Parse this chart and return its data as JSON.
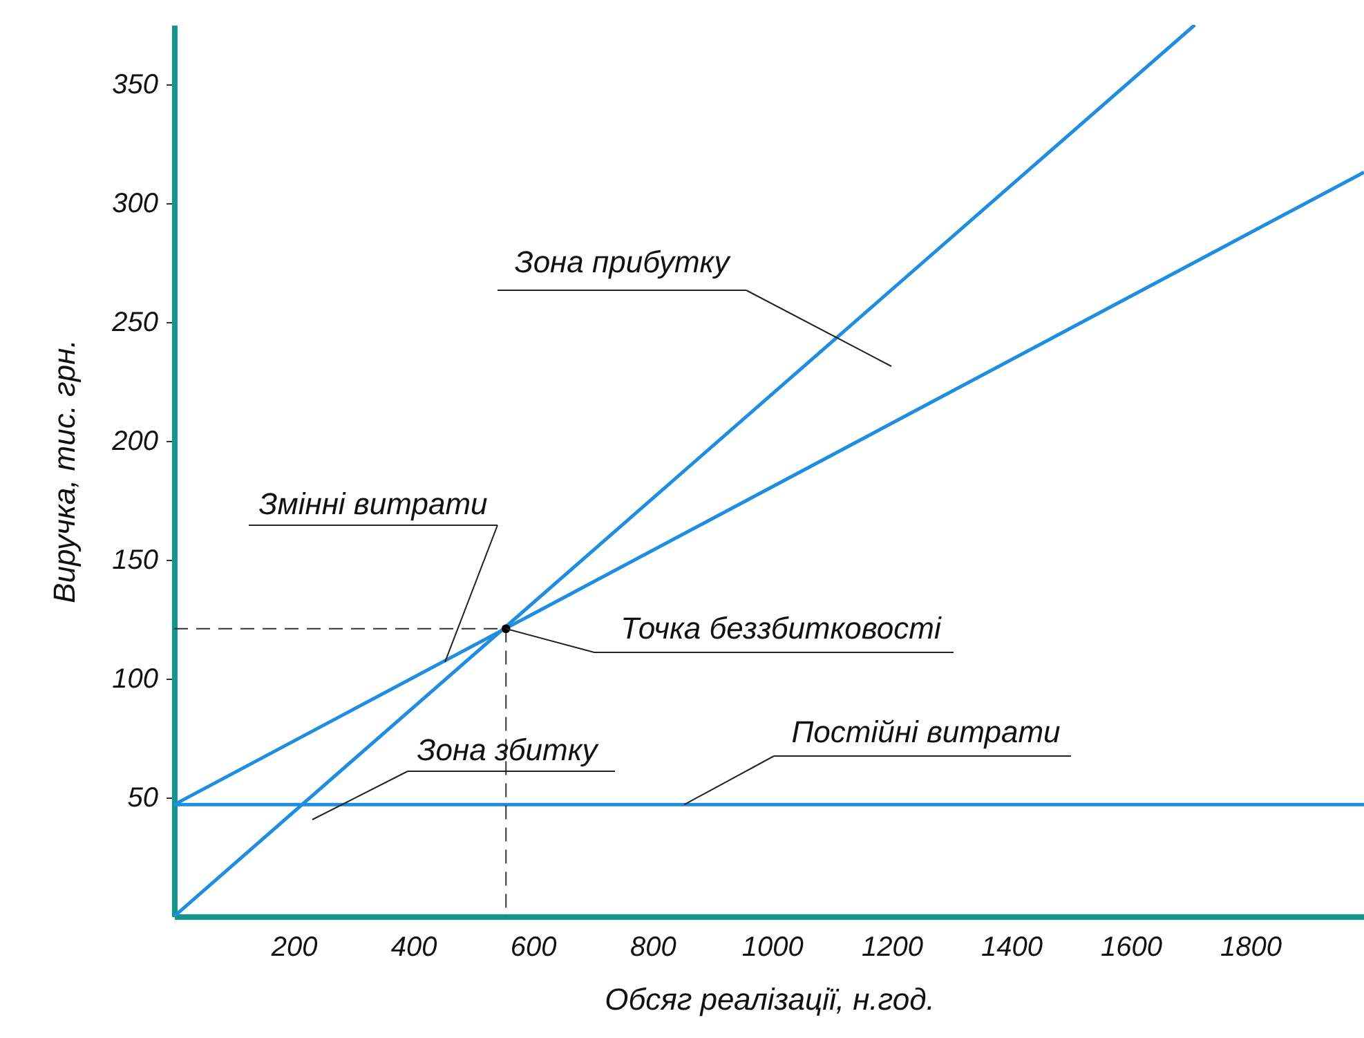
{
  "chart_data": {
    "type": "line",
    "xlabel": "Обсяг реалізації, н.год.",
    "ylabel": "Виручка, тис. грн.",
    "xlim": [
      0,
      1990
    ],
    "ylim": [
      0,
      375
    ],
    "xticks": [
      200,
      400,
      600,
      800,
      1000,
      1200,
      1400,
      1600,
      1800
    ],
    "yticks": [
      50,
      100,
      150,
      200,
      250,
      300,
      350
    ],
    "series": [
      {
        "color": "#1f8de0",
        "x": [
          0,
          1707
        ],
        "values": [
          0,
          375
        ]
      },
      {
        "color": "#1f8de0",
        "x": [
          0,
          1990
        ],
        "values": [
          47,
          313
        ]
      },
      {
        "color": "#1f8de0",
        "x": [
          0,
          1990
        ],
        "values": [
          47,
          47
        ]
      },
      {
        "color": "#333333",
        "line_style": "dashed",
        "x": [
          0,
          555,
          555
        ],
        "values": [
          121,
          121,
          0
        ]
      },
      {
        "type": "scatter",
        "color": "#000000",
        "x": [
          555
        ],
        "values": [
          121
        ]
      }
    ],
    "annotations": [
      "Зона прибутку",
      {
        "text": "Змінні витрати",
        "x": 453,
        "y": 107
      },
      {
        "text": "Точка беззбитковості",
        "x": 555,
        "y": 121
      },
      "Зона збитку",
      {
        "text": "Постійні витрати",
        "x": 853,
        "y": 47
      }
    ]
  }
}
